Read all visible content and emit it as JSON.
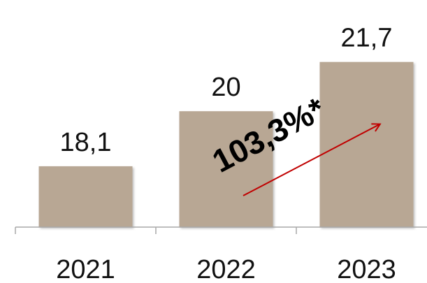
{
  "chart_data": {
    "type": "bar",
    "categories": [
      "2021",
      "2022",
      "2023"
    ],
    "values": [
      18.1,
      20,
      21.7
    ],
    "value_labels": [
      "18,1",
      "20",
      "21,7"
    ],
    "title": "",
    "xlabel": "",
    "ylabel": "",
    "grid": false,
    "legend": "none",
    "bar_color": "#b8a794",
    "axis_color": "#a8a8a8",
    "annotation": {
      "text": "103,3%*",
      "arrow_color": "#c00000"
    }
  }
}
